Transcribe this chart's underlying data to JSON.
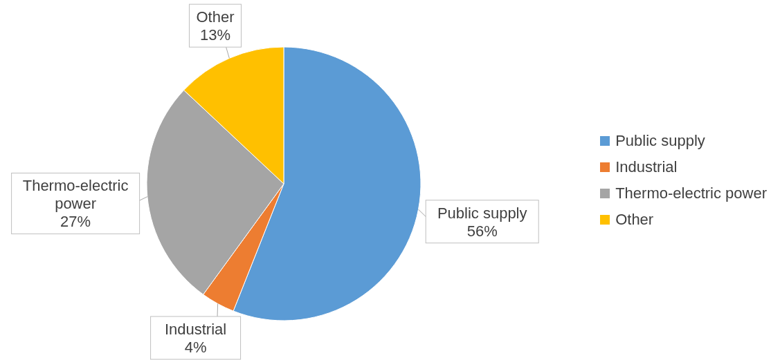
{
  "chart_data": {
    "type": "pie",
    "categories": [
      "Public supply",
      "Industrial",
      "Thermo-electric power",
      "Other"
    ],
    "values": [
      56,
      4,
      27,
      13
    ],
    "colors": [
      "#5b9bd5",
      "#ed7d31",
      "#a5a5a5",
      "#ffc000"
    ],
    "value_labels": [
      "56%",
      "4%",
      "27%",
      "13%"
    ],
    "legend": "right"
  }
}
